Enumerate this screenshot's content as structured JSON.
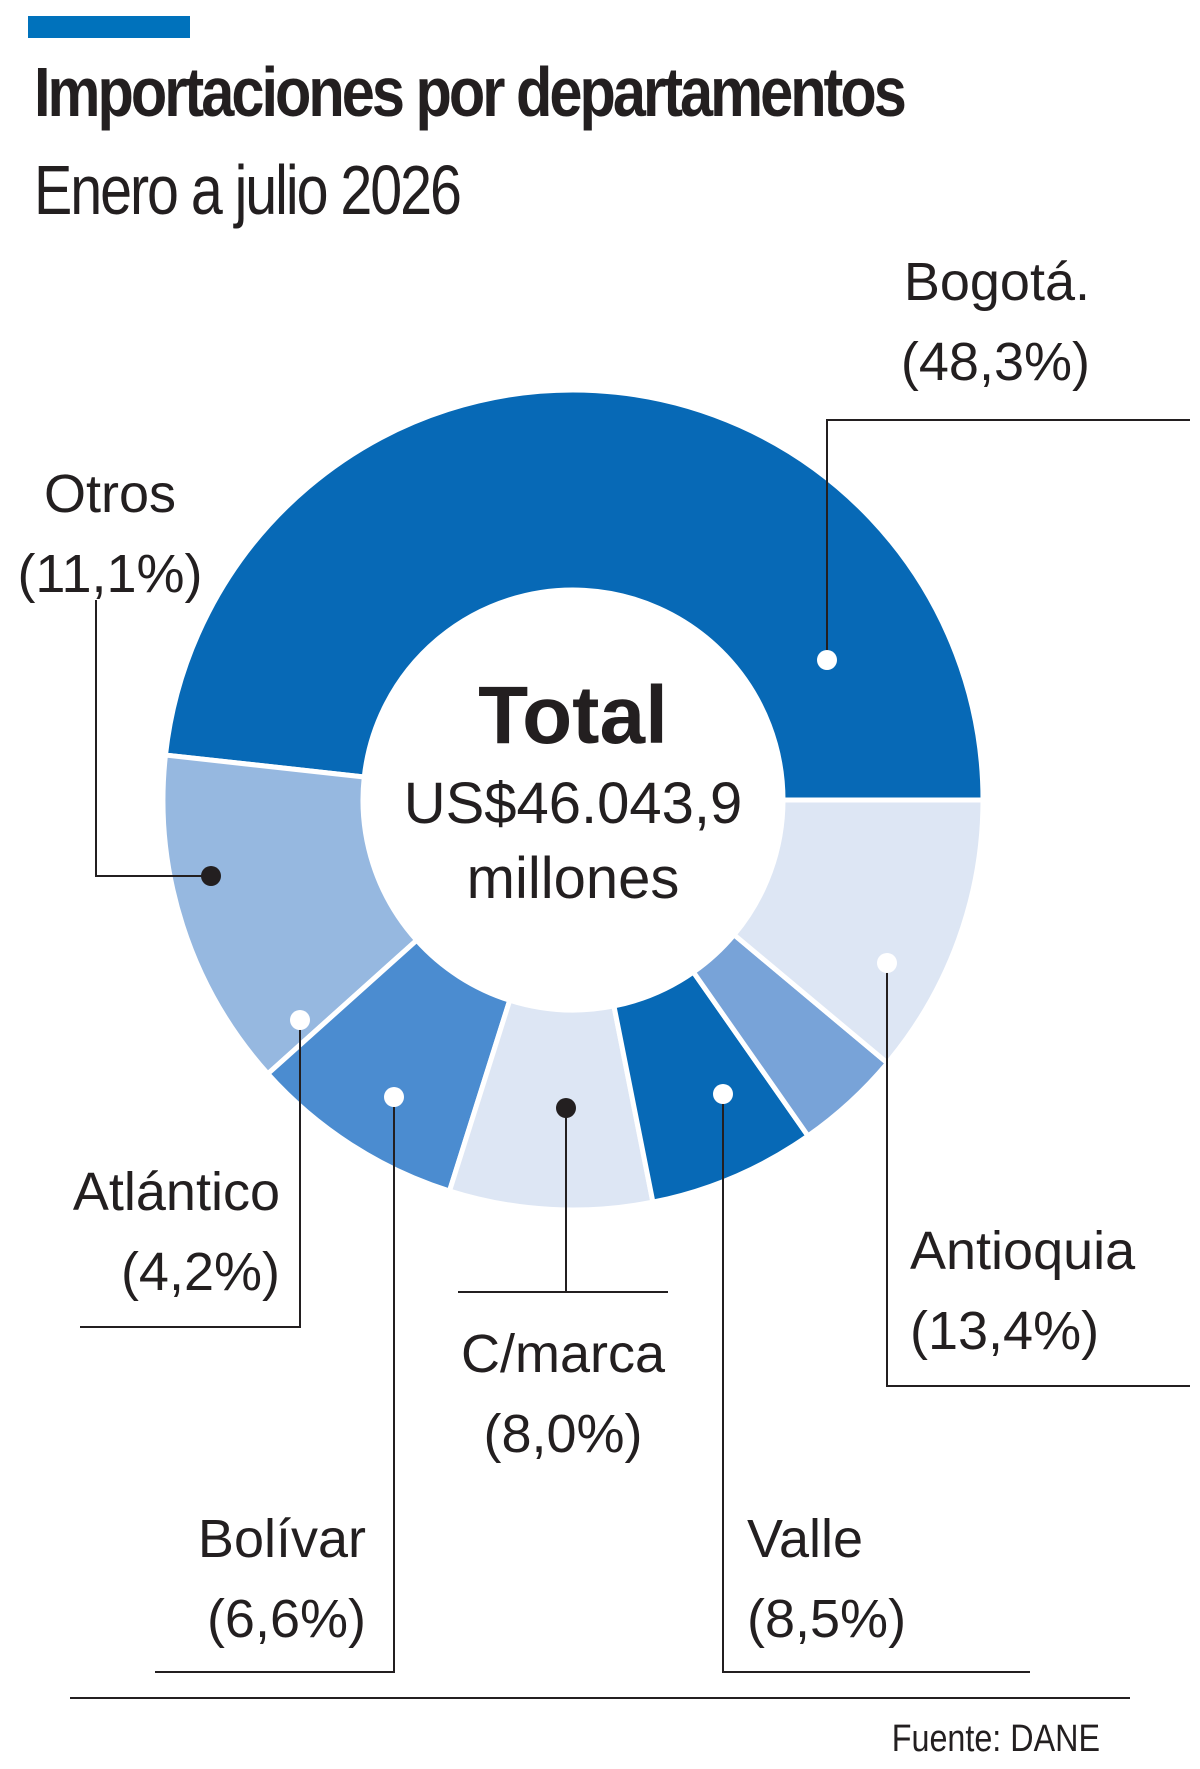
{
  "header": {
    "title": "Importaciones por departamentos",
    "subtitle": "Enero a julio 2026"
  },
  "colors": {
    "accent": "#0072bc",
    "text": "#231f20",
    "leader": "#231f20"
  },
  "chart_data": {
    "type": "pie",
    "style": "donut",
    "title": "Importaciones por departamentos",
    "subtitle": "Enero a julio 2026",
    "center": {
      "title": "Total",
      "line1": "US$46.043,9",
      "line2": "millones"
    },
    "slices": [
      {
        "name": "Bogotá.",
        "value": 48.3,
        "label": "(48,3%)",
        "color": "#0769b6",
        "dot": "light"
      },
      {
        "name": "Antioquia",
        "value": 13.4,
        "label": "(13,4%)",
        "color": "#96b8e0",
        "dot": "light"
      },
      {
        "name": "Valle",
        "value": 8.5,
        "label": "(8,5%)",
        "color": "#4b8cd0",
        "dot": "light"
      },
      {
        "name": "C/marca",
        "value": 8.0,
        "label": "(8,0%)",
        "color": "#dde6f4",
        "dot": "dark"
      },
      {
        "name": "Bolívar",
        "value": 6.6,
        "label": "(6,6%)",
        "color": "#0769b6",
        "dot": "light"
      },
      {
        "name": "Atlántico",
        "value": 4.2,
        "label": "(4,2%)",
        "color": "#78a3d8",
        "dot": "light"
      },
      {
        "name": "Otros",
        "value": 11.1,
        "label": "(11,1%)",
        "color": "#dde6f4",
        "dot": "dark"
      }
    ]
  },
  "source": "Fuente: DANE"
}
